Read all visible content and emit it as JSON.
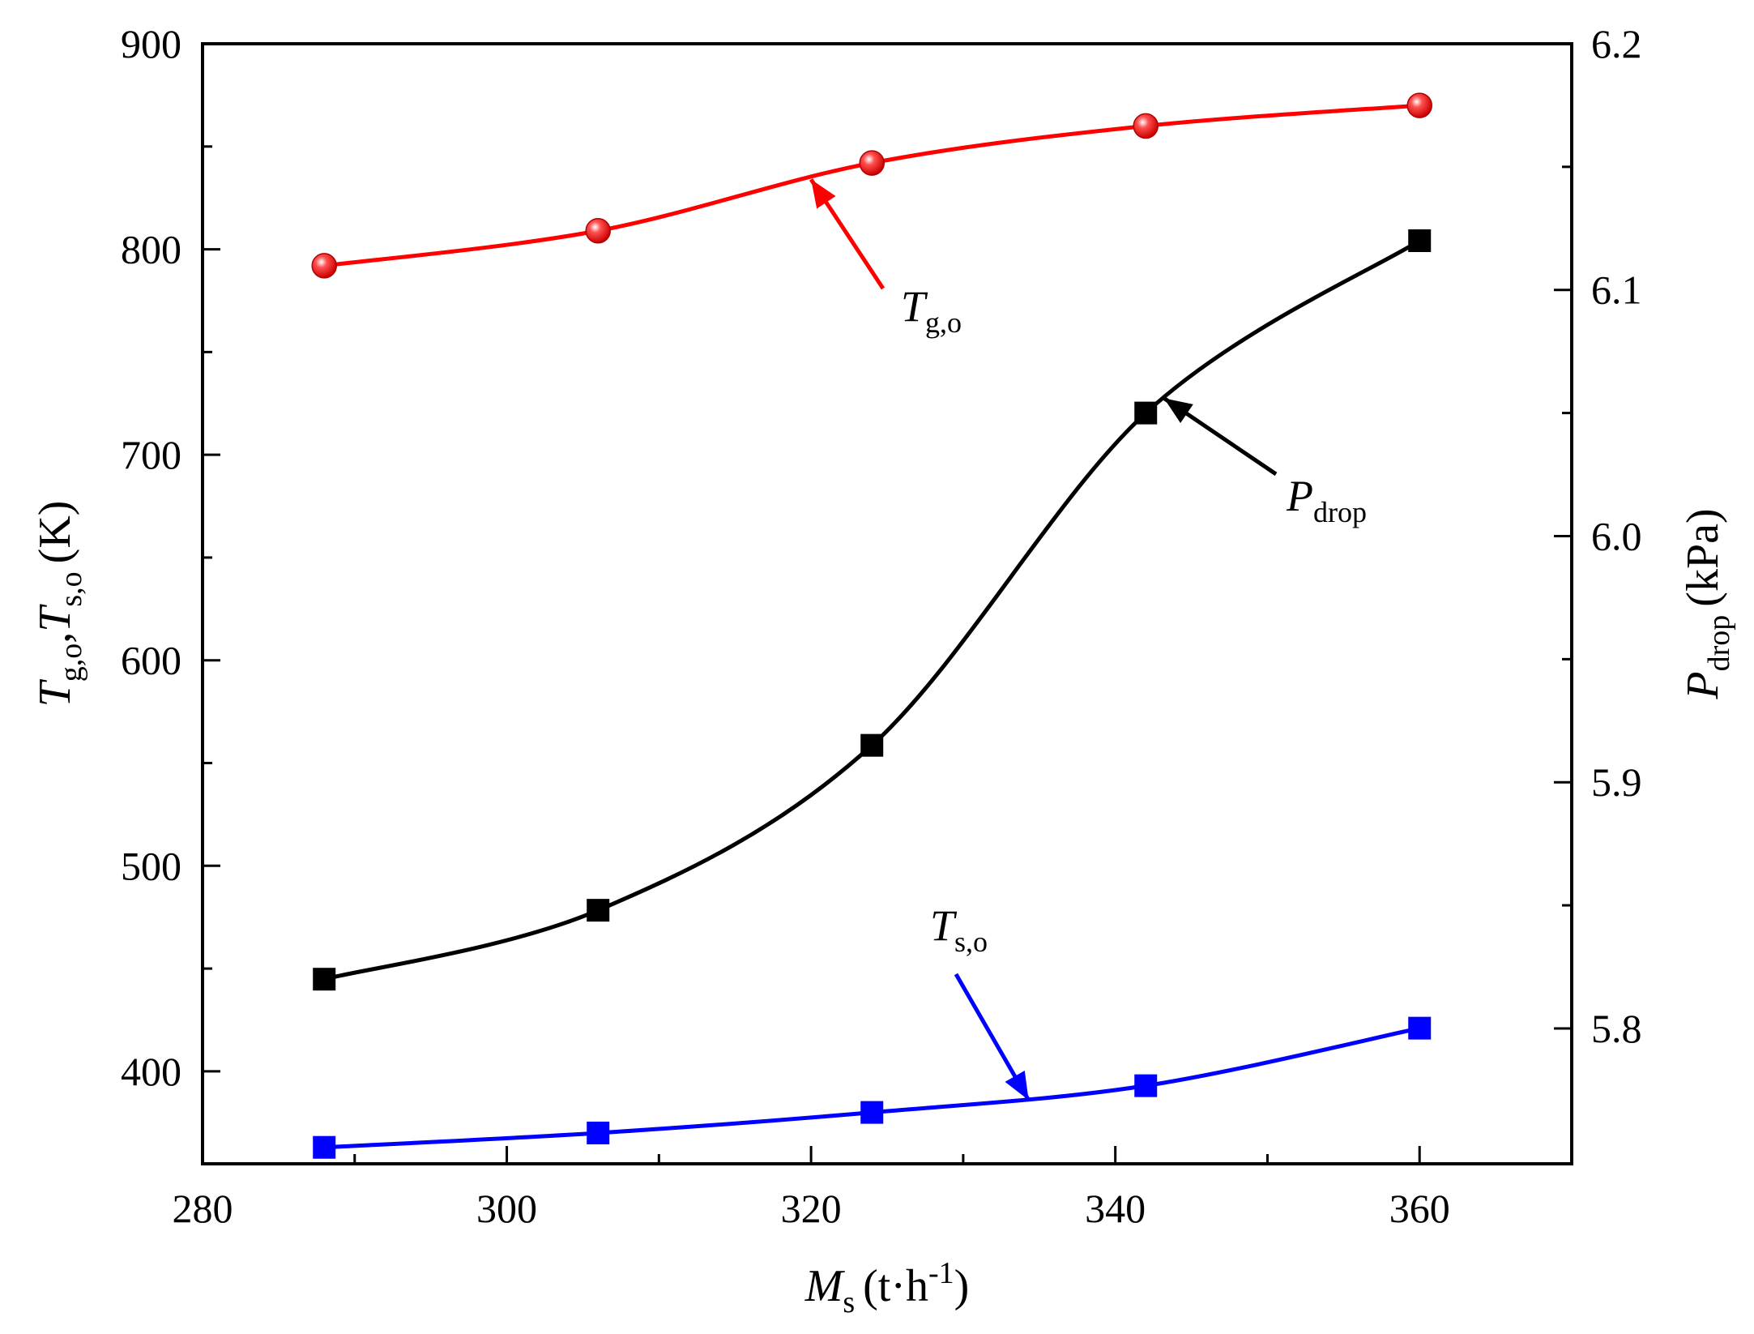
{
  "chart_data": {
    "type": "line",
    "x": [
      288,
      306,
      324,
      342,
      360
    ],
    "x_axis": {
      "label_main": "M",
      "label_sub": "s",
      "label_unit": "(t·h",
      "label_sup": "-1",
      "label_close": ")",
      "xlim": [
        280,
        370
      ],
      "major_ticks": [
        280,
        300,
        320,
        340,
        360
      ],
      "tick_labels": [
        "280",
        "300",
        "320",
        "340",
        "360"
      ],
      "minor_ticks": [
        290,
        310,
        330,
        350
      ]
    },
    "y_left": {
      "label_part1_main": "T",
      "label_part1_sub": "g,o",
      "label_comma": ",",
      "label_part2_main": "T",
      "label_part2_sub": "s,o",
      "label_unit": "(K)",
      "ylim": [
        355,
        900
      ],
      "major_ticks": [
        400,
        500,
        600,
        700,
        800,
        900
      ],
      "tick_labels": [
        "400",
        "500",
        "600",
        "700",
        "800",
        "900"
      ],
      "minor_ticks": [
        450,
        550,
        650,
        750,
        850
      ]
    },
    "y_right": {
      "label_main": "P",
      "label_sub": "drop",
      "label_unit": "(kPa)",
      "ylim": [
        5.745,
        6.2
      ],
      "major_ticks": [
        5.8,
        5.9,
        6.0,
        6.1,
        6.2
      ],
      "tick_labels": [
        "5.8",
        "5.9",
        "6.0",
        "6.1",
        "6.2"
      ],
      "minor_ticks": [
        5.85,
        5.95,
        6.05,
        6.15
      ]
    },
    "series": [
      {
        "name": "T_g,o",
        "label_main": "T",
        "label_sub": "g,o",
        "axis": "left",
        "marker": "sphere",
        "color": "#ff0000",
        "values": [
          792,
          809,
          842,
          860,
          870
        ]
      },
      {
        "name": "P_drop",
        "label_main": "P",
        "label_sub": "drop",
        "axis": "right",
        "marker": "square",
        "color": "#000000",
        "values": [
          5.82,
          5.848,
          5.915,
          6.05,
          6.12
        ]
      },
      {
        "name": "T_s,o",
        "label_main": "T",
        "label_sub": "s,o",
        "axis": "left",
        "marker": "square",
        "color": "#0000ff",
        "values": [
          363,
          370,
          380,
          393,
          421
        ]
      }
    ]
  }
}
